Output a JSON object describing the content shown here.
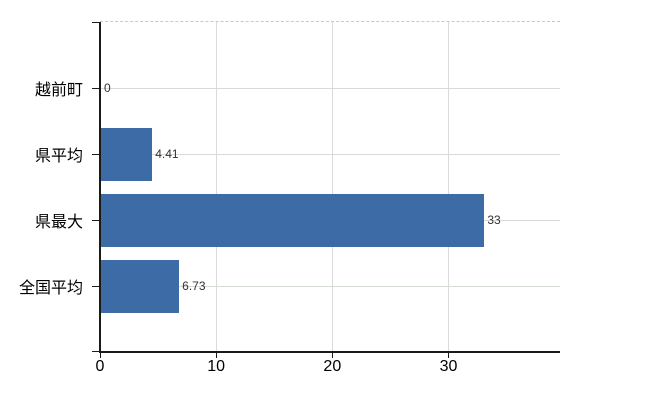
{
  "chart_data": {
    "type": "bar",
    "orientation": "horizontal",
    "title": "",
    "xlabel": "",
    "ylabel": "",
    "categories": [
      "越前町",
      "県平均",
      "県最大",
      "全国平均"
    ],
    "values": [
      0,
      4.41,
      33,
      6.73
    ],
    "value_labels": [
      "0",
      "4.41",
      "33",
      "6.73"
    ],
    "x_ticks": [
      0,
      10,
      20,
      30
    ],
    "x_tick_labels": [
      "0",
      "10",
      "20",
      "30"
    ],
    "xlim": [
      0,
      39.6
    ],
    "grid": true,
    "legend": false,
    "gridlines": {
      "horizontal": "at each category center",
      "vertical": "at 10, 20, 30",
      "top_border_style": "dashed"
    }
  },
  "colors": {
    "bar": "#3c6ba6",
    "h_gridline": "#d4dcd4",
    "v_gridline": "#dadada",
    "top_dashed_border": "#c8c8c8",
    "axis": "#1a1a1a",
    "value_text": "#333333",
    "label_text": "#000000",
    "background": "#ffffff"
  }
}
